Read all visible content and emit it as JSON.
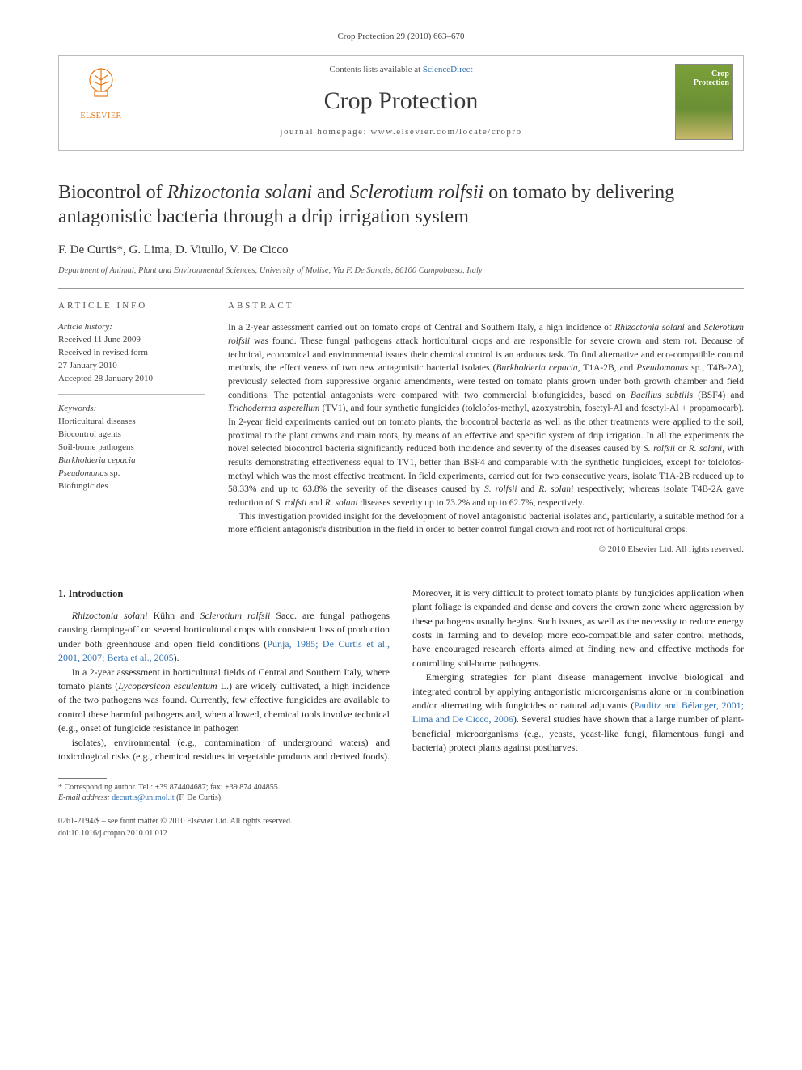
{
  "citation": "Crop Protection 29 (2010) 663–670",
  "header": {
    "contents_prefix": "Contents lists available at ",
    "contents_link": "ScienceDirect",
    "journal": "Crop Protection",
    "homepage_prefix": "journal homepage: ",
    "homepage_url": "www.elsevier.com/locate/cropro",
    "publisher_name": "ELSEVIER",
    "cover_label": "Crop Protection"
  },
  "title_parts": {
    "p1": "Biocontrol of ",
    "i1": "Rhizoctonia solani",
    "p2": " and ",
    "i2": "Sclerotium rolfsii",
    "p3": " on tomato by delivering antagonistic bacteria through a drip irrigation system"
  },
  "authors": "F. De Curtis*, G. Lima, D. Vitullo, V. De Cicco",
  "affiliation": "Department of Animal, Plant and Environmental Sciences, University of Molise, Via F. De Sanctis, 86100 Campobasso, Italy",
  "article_info": {
    "heading": "ARTICLE INFO",
    "history_label": "Article history:",
    "received": "Received 11 June 2009",
    "revised1": "Received in revised form",
    "revised2": "27 January 2010",
    "accepted": "Accepted 28 January 2010",
    "keywords_label": "Keywords:",
    "kw1": "Horticultural diseases",
    "kw2": "Biocontrol agents",
    "kw3": "Soil-borne pathogens",
    "kw4": "Burkholderia cepacia",
    "kw5_a": "Pseudomonas",
    "kw5_b": " sp.",
    "kw6": "Biofungicides"
  },
  "abstract": {
    "heading": "ABSTRACT",
    "p1": "In a 2-year assessment carried out on tomato crops of Central and Southern Italy, a high incidence of <i>Rhizoctonia solani</i> and <i>Sclerotium rolfsii</i> was found. These fungal pathogens attack horticultural crops and are responsible for severe crown and stem rot. Because of technical, economical and environmental issues their chemical control is an arduous task. To find alternative and eco-compatible control methods, the effectiveness of two new antagonistic bacterial isolates (<i>Burkholderia cepacia</i>, T1A-2B, and <i>Pseudomonas</i> sp., T4B-2A), previously selected from suppressive organic amendments, were tested on tomato plants grown under both growth chamber and field conditions. The potential antagonists were compared with two commercial biofungicides, based on <i>Bacillus subtilis</i> (BSF4) and <i>Trichoderma asperellum</i> (TV1), and four synthetic fungicides (tolclofos-methyl, azoxystrobin, fosetyl-Al and fosetyl-Al + propamocarb). In 2-year field experiments carried out on tomato plants, the biocontrol bacteria as well as the other treatments were applied to the soil, proximal to the plant crowns and main roots, by means of an effective and specific system of drip irrigation. In all the experiments the novel selected biocontrol bacteria significantly reduced both incidence and severity of the diseases caused by <i>S. rolfsii</i> or <i>R. solani</i>, with results demonstrating effectiveness equal to TV1, better than BSF4 and comparable with the synthetic fungicides, except for tolclofos-methyl which was the most effective treatment. In field experiments, carried out for two consecutive years, isolate T1A-2B reduced up to 58.33% and up to 63.8% the severity of the diseases caused by <i>S. rolfsii</i> and <i>R. solani</i> respectively; whereas isolate T4B-2A gave reduction of <i>S. rolfsii</i> and <i>R. solani</i> diseases severity up to 73.2% and up to 62.7%, respectively.",
    "p2": "This investigation provided insight for the development of novel antagonistic bacterial isolates and, particularly, a suitable method for a more efficient antagonist's distribution in the field in order to better control fungal crown and root rot of horticultural crops.",
    "copyright": "© 2010 Elsevier Ltd. All rights reserved."
  },
  "body": {
    "section_num": "1. Introduction",
    "p1": "<i>Rhizoctonia solani</i> Kühn and <i>Sclerotium rolfsii</i> Sacc. are fungal pathogens causing damping-off on several horticultural crops with consistent loss of production under both greenhouse and open field conditions (<a class='ref'>Punja, 1985; De Curtis et al., 2001, 2007; Berta et al., 2005</a>).",
    "p2": "In a 2-year assessment in horticultural fields of Central and Southern Italy, where tomato plants (<i>Lycopersicon esculentum</i> L.) are widely cultivated, a high incidence of the two pathogens was found. Currently, few effective fungicides are available to control these harmful pathogens and, when allowed, chemical tools involve technical (e.g., onset of fungicide resistance in pathogen",
    "p3": "isolates), environmental (e.g., contamination of underground waters) and toxicological risks (e.g., chemical residues in vegetable products and derived foods). Moreover, it is very difficult to protect tomato plants by fungicides application when plant foliage is expanded and dense and covers the crown zone where aggression by these pathogens usually begins. Such issues, as well as the necessity to reduce energy costs in farming and to develop more eco-compatible and safer control methods, have encouraged research efforts aimed at finding new and effective methods for controlling soil-borne pathogens.",
    "p4": "Emerging strategies for plant disease management involve biological and integrated control by applying antagonistic microorganisms alone or in combination and/or alternating with fungicides or natural adjuvants (<a class='ref'>Paulitz and Bélanger, 2001; Lima and De Cicco, 2006</a>). Several studies have shown that a large number of plant-beneficial microorganisms (e.g., yeasts, yeast-like fungi, filamentous fungi and bacteria) protect plants against postharvest"
  },
  "footnote": {
    "corr": "* Corresponding author. Tel.: +39 874404687; fax: +39 874 404855.",
    "email_label": "E-mail address: ",
    "email": "decurtis@unimol.it",
    "email_suffix": " (F. De Curtis)."
  },
  "bottom": {
    "line1": "0261-2194/$ – see front matter © 2010 Elsevier Ltd. All rights reserved.",
    "line2": "doi:10.1016/j.cropro.2010.01.012"
  },
  "colors": {
    "link": "#2f6fb0",
    "elsevier_orange": "#e67817"
  }
}
